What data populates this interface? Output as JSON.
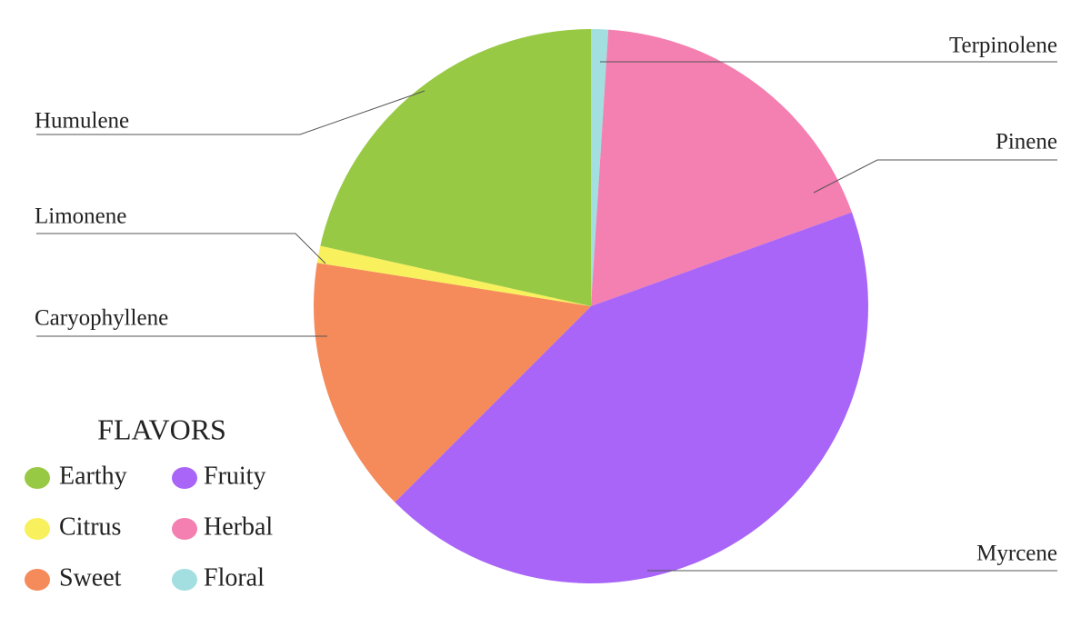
{
  "chart_data": {
    "type": "pie",
    "categories": [
      "Terpinolene",
      "Pinene",
      "Myrcene",
      "Caryophyllene",
      "Limonene",
      "Humulene"
    ],
    "values": [
      1,
      18.5,
      43,
      15,
      1,
      21.5
    ],
    "colors": [
      "#a3dfe0",
      "#f47fb1",
      "#a865f8",
      "#f58a5b",
      "#f8f05c",
      "#98c944"
    ],
    "legend": {
      "title": "FLAVORS",
      "items": [
        {
          "label": "Earthy",
          "color": "#98c944"
        },
        {
          "label": "Fruity",
          "color": "#a865f8"
        },
        {
          "label": "Citrus",
          "color": "#f8f05c"
        },
        {
          "label": "Herbal",
          "color": "#f47fb1"
        },
        {
          "label": "Sweet",
          "color": "#f58a5b"
        },
        {
          "label": "Floral",
          "color": "#a3dfe0"
        }
      ]
    }
  }
}
